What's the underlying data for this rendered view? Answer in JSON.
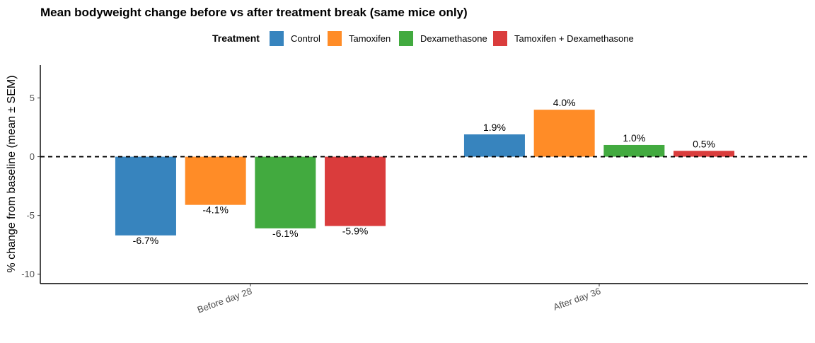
{
  "chart_data": {
    "type": "bar",
    "title": "Mean bodyweight change before vs after treatment break (same mice only)",
    "ylabel": "% change from baseline (mean ± SEM)",
    "xlabel": "",
    "ylim": [
      -10.8,
      7.8
    ],
    "yticks": [
      5,
      0,
      -5,
      -10
    ],
    "reference_line": 0,
    "grid": false,
    "legend": {
      "title": "Treatment",
      "position": "top"
    },
    "categories": [
      "Before day 28",
      "After day 36"
    ],
    "series": [
      {
        "name": "Control",
        "color": "#3784BE",
        "values": [
          -6.7,
          1.9
        ],
        "labels": [
          "-6.7%",
          "1.9%"
        ]
      },
      {
        "name": "Tamoxifen",
        "color": "#FF8C27",
        "values": [
          -4.1,
          4.0
        ],
        "labels": [
          "-4.1%",
          "4.0%"
        ]
      },
      {
        "name": "Dexamethasone",
        "color": "#42AA3F",
        "values": [
          -6.1,
          1.0
        ],
        "labels": [
          "-6.1%",
          "1.0%"
        ]
      },
      {
        "name": "Tamoxifen + Dexamethasone",
        "color": "#DA3C3C",
        "values": [
          -5.9,
          0.5
        ],
        "labels": [
          "-5.9%",
          "0.5%"
        ]
      }
    ]
  }
}
